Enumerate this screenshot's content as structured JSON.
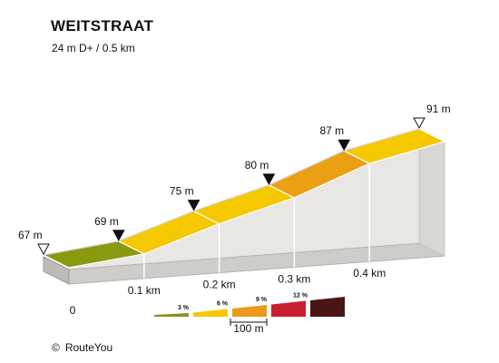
{
  "header": {
    "title": "WEITSTRAAT",
    "subtitle": "24 m D+ / 0.5 km"
  },
  "chart_data": {
    "type": "area",
    "subtype": "elevation-profile-3d",
    "x_unit": "km",
    "y_unit": "m",
    "x_ticks": [
      {
        "x": 0,
        "label": "0"
      },
      {
        "x": 0.1,
        "label": "0.1 km"
      },
      {
        "x": 0.2,
        "label": "0.2 km"
      },
      {
        "x": 0.3,
        "label": "0.3 km"
      },
      {
        "x": 0.4,
        "label": "0.4 km"
      }
    ],
    "points": [
      {
        "x": 0.0,
        "elevation": 67,
        "label": "67 m",
        "marker": "start"
      },
      {
        "x": 0.1,
        "elevation": 69,
        "label": "69 m",
        "marker": "point"
      },
      {
        "x": 0.2,
        "elevation": 75,
        "label": "75 m",
        "marker": "point"
      },
      {
        "x": 0.3,
        "elevation": 80,
        "label": "80 m",
        "marker": "point"
      },
      {
        "x": 0.4,
        "elevation": 87,
        "label": "87 m",
        "marker": "point"
      },
      {
        "x": 0.5,
        "elevation": 91,
        "label": "91 m",
        "marker": "end"
      }
    ],
    "segment_colors": [
      "#8a9a10",
      "#f6c800",
      "#f6c800",
      "#eaa012",
      "#f6c800"
    ],
    "legend": {
      "items": [
        {
          "label": "3 %",
          "color": "#7f9520"
        },
        {
          "label": "6 %",
          "color": "#f6c800"
        },
        {
          "label": "9 %",
          "color": "#ec9a1c"
        },
        {
          "label": "12 %",
          "color": "#c8202e"
        },
        {
          "label": "",
          "color": "#4a1515"
        }
      ],
      "scale_label": "100 m"
    }
  },
  "footer": {
    "copyright_symbol": "©",
    "credit": "RouteYou"
  }
}
